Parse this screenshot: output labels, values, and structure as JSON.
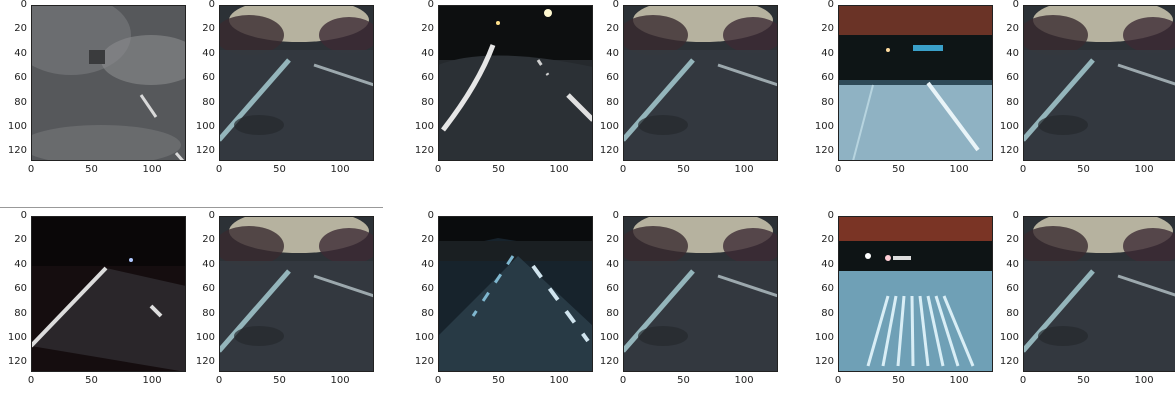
{
  "figure": {
    "y_ticks": [
      "0",
      "20",
      "40",
      "60",
      "80",
      "100",
      "120"
    ],
    "x_ticks": [
      "0",
      "50",
      "100"
    ]
  },
  "panels": [
    {
      "id": "r1c1",
      "kind": "source",
      "scene": "fog-road"
    },
    {
      "id": "r1c2",
      "kind": "generated",
      "scene": "generated-road"
    },
    {
      "id": "r1c3",
      "kind": "source",
      "scene": "night-curve"
    },
    {
      "id": "r1c4",
      "kind": "generated",
      "scene": "generated-road"
    },
    {
      "id": "r1c5",
      "kind": "source",
      "scene": "red-sky-road"
    },
    {
      "id": "r1c6",
      "kind": "generated",
      "scene": "generated-road"
    },
    {
      "id": "r2c1",
      "kind": "source",
      "scene": "dark-road"
    },
    {
      "id": "r2c2",
      "kind": "generated",
      "scene": "generated-road"
    },
    {
      "id": "r2c3",
      "kind": "source",
      "scene": "night-straight"
    },
    {
      "id": "r2c4",
      "kind": "generated",
      "scene": "generated-road"
    },
    {
      "id": "r2c5",
      "kind": "source",
      "scene": "crosswalk-road"
    },
    {
      "id": "r2c6",
      "kind": "generated",
      "scene": "generated-road"
    }
  ]
}
